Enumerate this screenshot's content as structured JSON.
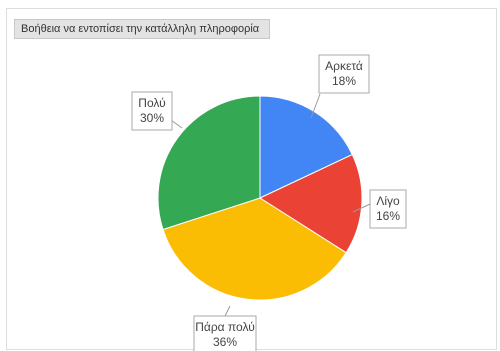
{
  "chart_data": {
    "type": "pie",
    "title": "Βοήθεια να εντοπίσει την κατάλληλη πληροφορία",
    "categories": [
      "Αρκετά",
      "Λίγο",
      "Πάρα πολύ",
      "Πολύ"
    ],
    "values": [
      18,
      16,
      36,
      30
    ],
    "value_labels": [
      "18%",
      "16%",
      "36%",
      "30%"
    ],
    "colors": [
      "#4285f4",
      "#ea4335",
      "#fbbc04",
      "#34a853"
    ],
    "legend": "none"
  }
}
